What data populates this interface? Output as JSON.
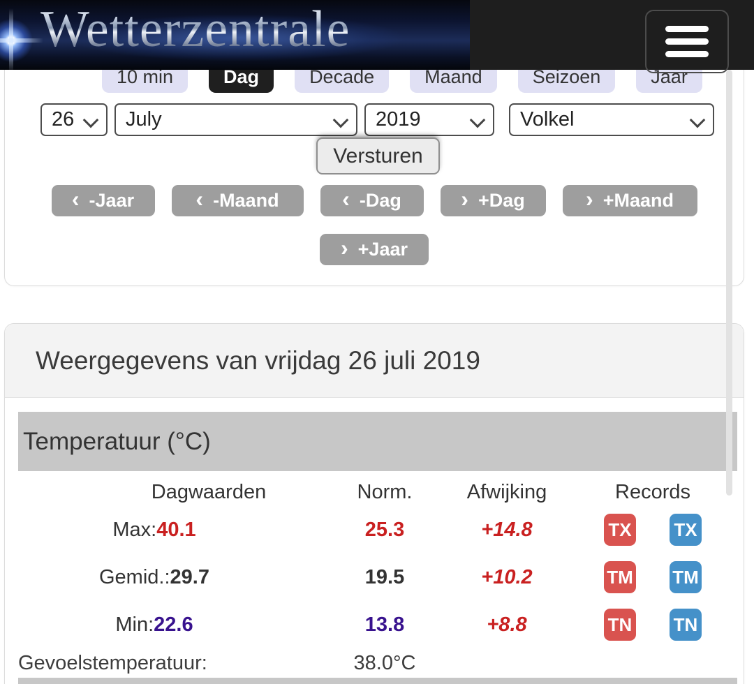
{
  "header": {
    "logo_text": "Wetterzentrale",
    "menu_icon": "hamburger-icon"
  },
  "tabs": {
    "items": [
      {
        "label": "10 min",
        "active": false
      },
      {
        "label": "Dag",
        "active": true
      },
      {
        "label": "Decade",
        "active": false
      },
      {
        "label": "Maand",
        "active": false
      },
      {
        "label": "Seizoen",
        "active": false
      },
      {
        "label": "Jaar",
        "active": false
      }
    ]
  },
  "date_form": {
    "day": "26",
    "month": "July",
    "year": "2019",
    "station": "Volkel",
    "submit_label": "Versturen"
  },
  "nav": {
    "chevron_left": "‹",
    "chevron_right": "›",
    "prev_year": "-Jaar",
    "prev_month": "-Maand",
    "prev_day": "-Dag",
    "next_day": "+Dag",
    "next_month": "+Maand",
    "next_year": "+Jaar"
  },
  "weather": {
    "title": "Weergegevens van vrijdag 26 juli 2019",
    "section": "Temperatuur (°C)",
    "columns": [
      "Dagwaarden",
      "Norm.",
      "Afwijking",
      "Records"
    ],
    "rows": [
      {
        "label": "Max:",
        "value": "40.1",
        "norm": "25.3",
        "deviation": "+14.8",
        "record_station": "TX",
        "record_national": "TX"
      },
      {
        "label": "Gemid.:",
        "value": "29.7",
        "norm": "19.5",
        "deviation": "+10.2",
        "record_station": "TM",
        "record_national": "TM"
      },
      {
        "label": "Min:",
        "value": "22.6",
        "norm": "13.8",
        "deviation": "+8.8",
        "record_station": "TN",
        "record_national": "TN"
      }
    ],
    "feels_like": {
      "label": "Gevoelstemperatuur:",
      "value": "38.0°C"
    }
  },
  "colors": {
    "header_bg": "#1e1e1e",
    "tab_bg": "#e0e0f4",
    "active_tab_bg": "#1f1f1f",
    "nav_button_bg": "#9e9e9e",
    "section_bar_bg": "#c7c7c7",
    "value_red": "#c92020",
    "value_indigo": "#38128e",
    "badge_red": "#d9534f",
    "badge_blue": "#4591c9"
  }
}
